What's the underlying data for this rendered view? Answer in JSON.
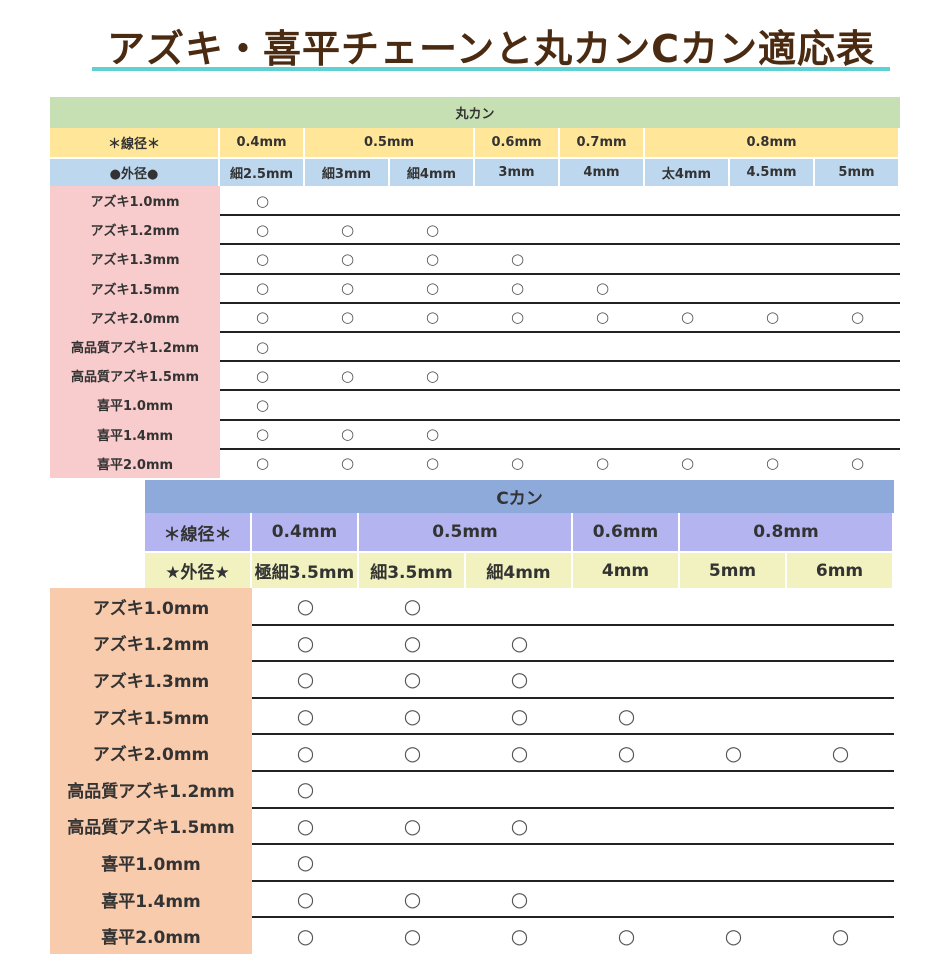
{
  "title": "アズキ・喜平チェーンと丸カンCカン適応表",
  "colors": {
    "title": "#4a2a10",
    "underline": "#5fd0d3",
    "t1_header": "#c6e0b4",
    "t1_wire": "#ffe699",
    "t1_outer": "#bdd7ee",
    "t1_label": "#f8cbcc",
    "t2_header": "#8eaadb",
    "t2_wire": "#b4b4f0",
    "t2_outer": "#f2f2c0",
    "t2_label": "#f8cbad"
  },
  "mark": "○",
  "table1": {
    "header": "丸カン",
    "wire_label": "＊線径＊",
    "wire": [
      {
        "label": "0.4mm",
        "span": 1
      },
      {
        "label": "0.5mm",
        "span": 2
      },
      {
        "label": "0.6mm",
        "span": 1
      },
      {
        "label": "0.7mm",
        "span": 1
      },
      {
        "label": "0.8mm",
        "span": 3
      }
    ],
    "outer_label": "●外径●",
    "outer": [
      "細2.5mm",
      "細3mm",
      "細4mm",
      "3mm",
      "4mm",
      "太4mm",
      "4.5mm",
      "5mm"
    ],
    "rows": [
      {
        "label": "アズキ1.0mm",
        "marks": [
          1,
          0,
          0,
          0,
          0,
          0,
          0,
          0
        ]
      },
      {
        "label": "アズキ1.2mm",
        "marks": [
          1,
          1,
          1,
          0,
          0,
          0,
          0,
          0
        ]
      },
      {
        "label": "アズキ1.3mm",
        "marks": [
          1,
          1,
          1,
          1,
          0,
          0,
          0,
          0
        ]
      },
      {
        "label": "アズキ1.5mm",
        "marks": [
          1,
          1,
          1,
          1,
          1,
          0,
          0,
          0
        ]
      },
      {
        "label": "アズキ2.0mm",
        "marks": [
          1,
          1,
          1,
          1,
          1,
          1,
          1,
          1
        ]
      },
      {
        "label": "高品質アズキ1.2mm",
        "marks": [
          1,
          0,
          0,
          0,
          0,
          0,
          0,
          0
        ]
      },
      {
        "label": "高品質アズキ1.5mm",
        "marks": [
          1,
          1,
          1,
          0,
          0,
          0,
          0,
          0
        ]
      },
      {
        "label": "喜平1.0mm",
        "marks": [
          1,
          0,
          0,
          0,
          0,
          0,
          0,
          0
        ]
      },
      {
        "label": "喜平1.4mm",
        "marks": [
          1,
          1,
          1,
          0,
          0,
          0,
          0,
          0
        ]
      },
      {
        "label": "喜平2.0mm",
        "marks": [
          1,
          1,
          1,
          1,
          1,
          1,
          1,
          1
        ]
      }
    ]
  },
  "table2": {
    "header": "Cカン",
    "wire_label": "＊線径＊",
    "wire": [
      {
        "label": "0.4mm",
        "span": 1
      },
      {
        "label": "0.5mm",
        "span": 2
      },
      {
        "label": "0.6mm",
        "span": 1
      },
      {
        "label": "0.8mm",
        "span": 2
      }
    ],
    "outer_label": "★外径★",
    "outer": [
      "極細3.5mm",
      "細3.5mm",
      "細4mm",
      "4mm",
      "5mm",
      "6mm"
    ],
    "rows": [
      {
        "label": "アズキ1.0mm",
        "marks": [
          1,
          1,
          0,
          0,
          0,
          0
        ]
      },
      {
        "label": "アズキ1.2mm",
        "marks": [
          1,
          1,
          1,
          0,
          0,
          0
        ]
      },
      {
        "label": "アズキ1.3mm",
        "marks": [
          1,
          1,
          1,
          0,
          0,
          0
        ]
      },
      {
        "label": "アズキ1.5mm",
        "marks": [
          1,
          1,
          1,
          1,
          0,
          0
        ]
      },
      {
        "label": "アズキ2.0mm",
        "marks": [
          1,
          1,
          1,
          1,
          1,
          1
        ]
      },
      {
        "label": "高品質アズキ1.2mm",
        "marks": [
          1,
          0,
          0,
          0,
          0,
          0
        ]
      },
      {
        "label": "高品質アズキ1.5mm",
        "marks": [
          1,
          1,
          1,
          0,
          0,
          0
        ]
      },
      {
        "label": "喜平1.0mm",
        "marks": [
          1,
          0,
          0,
          0,
          0,
          0
        ]
      },
      {
        "label": "喜平1.4mm",
        "marks": [
          1,
          1,
          1,
          0,
          0,
          0
        ]
      },
      {
        "label": "喜平2.0mm",
        "marks": [
          1,
          1,
          1,
          1,
          1,
          1
        ]
      }
    ]
  }
}
